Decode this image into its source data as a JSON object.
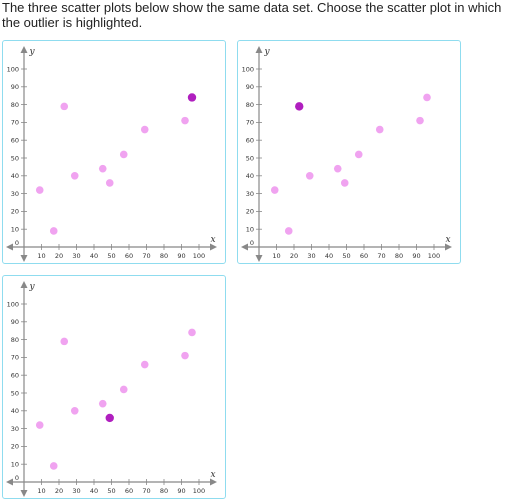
{
  "question": {
    "text": "The three scatter plots below show the same data set. Choose the scatter plot in which the outlier is highlighted."
  },
  "colors": {
    "point": "#f0a3f0",
    "highlight": "#b01fbf",
    "axis": "#888888",
    "choice_border": "#8fdcef"
  },
  "plot_options": [
    {
      "label": "choice-a",
      "highlighted_index": 9
    },
    {
      "label": "choice-b",
      "highlighted_index": 2
    },
    {
      "label": "choice-c",
      "highlighted_index": 5
    }
  ],
  "chart_data": {
    "type": "scatter",
    "xlabel": "x",
    "ylabel": "y",
    "xlim": [
      0,
      100
    ],
    "ylim": [
      0,
      100
    ],
    "x_ticks": [
      10,
      20,
      30,
      40,
      50,
      60,
      70,
      80,
      90,
      100
    ],
    "y_ticks": [
      10,
      20,
      30,
      40,
      50,
      60,
      70,
      80,
      90,
      100
    ],
    "points": [
      {
        "x": 9,
        "y": 32
      },
      {
        "x": 17,
        "y": 9
      },
      {
        "x": 23,
        "y": 79
      },
      {
        "x": 29,
        "y": 40
      },
      {
        "x": 45,
        "y": 44
      },
      {
        "x": 49,
        "y": 36
      },
      {
        "x": 57,
        "y": 52
      },
      {
        "x": 69,
        "y": 66
      },
      {
        "x": 92,
        "y": 71
      },
      {
        "x": 96,
        "y": 84
      }
    ]
  }
}
